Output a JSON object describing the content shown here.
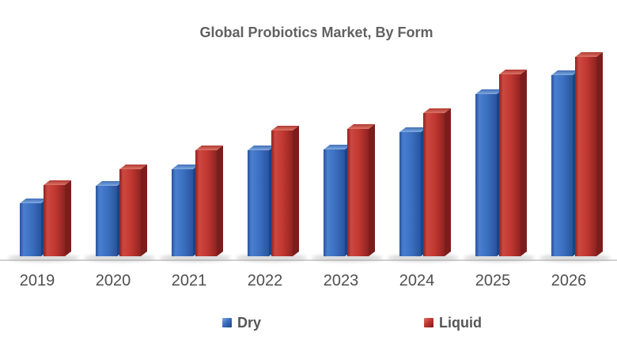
{
  "title": "Global Probiotics Market, By Form",
  "chart_data": {
    "type": "bar",
    "style": "3d-clustered-column",
    "title": "Global Probiotics Market, By Form",
    "categories": [
      "2019",
      "2020",
      "2021",
      "2022",
      "2023",
      "2024",
      "2025",
      "2026"
    ],
    "series": [
      {
        "name": "Dry",
        "color": "#3B70C0",
        "values": [
          67,
          89,
          110,
          134,
          135,
          157,
          205,
          229
        ],
        "palette": {
          "light": "#4A7ECF",
          "front": "#3B70C0",
          "edge": "#29539E",
          "side": "#1F4382",
          "top_back": "#3F6FB8",
          "top_front": "#82A9E1"
        }
      },
      {
        "name": "Liquid",
        "color": "#C23731",
        "values": [
          90,
          110,
          134,
          159,
          161,
          181,
          230,
          252
        ],
        "palette": {
          "light": "#CC4840",
          "front": "#C23731",
          "edge": "#8E2321",
          "side": "#7C1D1B",
          "top_back": "#B23A33",
          "top_front": "#DC7366"
        }
      }
    ],
    "xlabel": "",
    "ylabel": "",
    "value_axis_visible": false,
    "units": "relative height (no value axis shown)",
    "ylim": [
      0,
      260
    ],
    "grid": false,
    "legend_position": "bottom"
  },
  "colors": {
    "background": "#FFFFFF",
    "title_text": "#616161",
    "axis_label_text": "#4F4F4F",
    "legend_text": "#565656",
    "axis_line": "#C2C2C2",
    "bar_shadow": "#8F8F8F"
  }
}
